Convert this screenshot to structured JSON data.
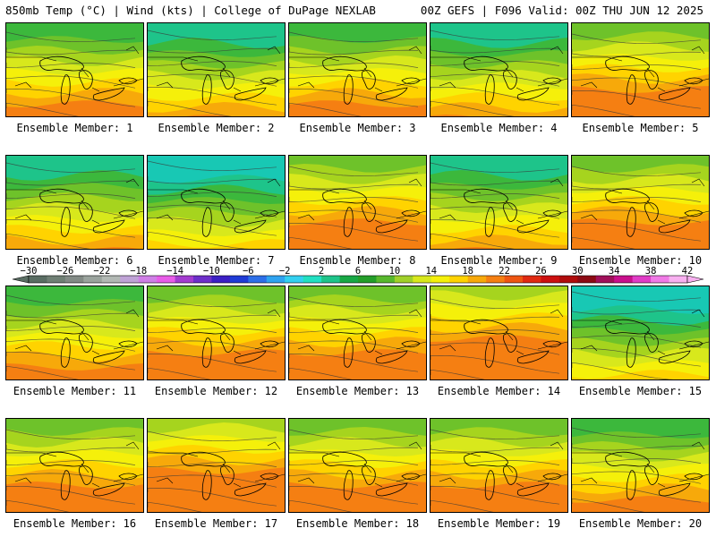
{
  "header": {
    "title": "850mb Temp (°C) | Wind (kts) | College of DuPage NEXLAB",
    "run_info": "00Z GEFS | F096 Valid: 00Z THU JUN 12 2025"
  },
  "colorbar": {
    "labels": [
      "−30",
      "−26",
      "−22",
      "−18",
      "−14",
      "−10",
      "−6",
      "−2",
      "2",
      "6",
      "10",
      "14",
      "18",
      "22",
      "26",
      "30",
      "34",
      "38",
      "42"
    ],
    "colors": [
      "#5a6d63",
      "#6f7f74",
      "#828a85",
      "#9aa39d",
      "#b2b8b4",
      "#bfa3d6",
      "#cf7fe6",
      "#e85ce8",
      "#a33ccf",
      "#6d2fc9",
      "#3b1fc4",
      "#1f3bd6",
      "#2d6fe8",
      "#2fa3f0",
      "#33d0f0",
      "#22e0c2",
      "#1ec48a",
      "#18a845",
      "#249e2a",
      "#58b82d",
      "#a0d02a",
      "#d8e81c",
      "#f5f00a",
      "#ffd300",
      "#f7a90a",
      "#f57f12",
      "#ee5512",
      "#e02a12",
      "#cc1010",
      "#b00c0c",
      "#8c0a14",
      "#a0105a",
      "#c8108c",
      "#e03cc6",
      "#f07ae6",
      "#f8b0f0"
    ]
  },
  "members": [
    {
      "label": "Ensemble Member: 1",
      "temp_shift": 0
    },
    {
      "label": "Ensemble Member: 2",
      "temp_shift": -1
    },
    {
      "label": "Ensemble Member: 3",
      "temp_shift": 0
    },
    {
      "label": "Ensemble Member: 4",
      "temp_shift": -1
    },
    {
      "label": "Ensemble Member: 5",
      "temp_shift": 1
    },
    {
      "label": "Ensemble Member: 6",
      "temp_shift": -1
    },
    {
      "label": "Ensemble Member: 7",
      "temp_shift": -2
    },
    {
      "label": "Ensemble Member: 8",
      "temp_shift": 1
    },
    {
      "label": "Ensemble Member: 9",
      "temp_shift": -1
    },
    {
      "label": "Ensemble Member: 10",
      "temp_shift": 1
    },
    {
      "label": "Ensemble Member: 11",
      "temp_shift": 0
    },
    {
      "label": "Ensemble Member: 12",
      "temp_shift": 1
    },
    {
      "label": "Ensemble Member: 13",
      "temp_shift": 1
    },
    {
      "label": "Ensemble Member: 14",
      "temp_shift": 2
    },
    {
      "label": "Ensemble Member: 15",
      "temp_shift": -2
    },
    {
      "label": "Ensemble Member: 16",
      "temp_shift": 1
    },
    {
      "label": "Ensemble Member: 17",
      "temp_shift": 2
    },
    {
      "label": "Ensemble Member: 18",
      "temp_shift": 1
    },
    {
      "label": "Ensemble Member: 19",
      "temp_shift": 1
    },
    {
      "label": "Ensemble Member: 20",
      "temp_shift": 0
    }
  ]
}
